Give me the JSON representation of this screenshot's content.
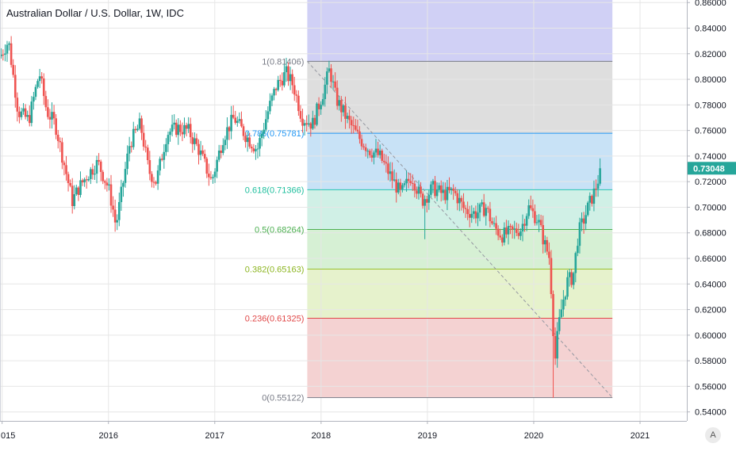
{
  "header": {
    "title": "Australian Dollar / U.S. Dollar, 1W, IDC"
  },
  "controls": {
    "auto_scale_label": "A"
  },
  "chart_data": {
    "type": "candlestick",
    "title": "Australian Dollar / U.S. Dollar, 1W, IDC",
    "ylim": [
      0.533,
      0.862
    ],
    "y_ticks": [
      "0.86000",
      "0.84000",
      "0.82000",
      "0.80000",
      "0.78000",
      "0.76000",
      "0.74000",
      "0.72000",
      "0.70000",
      "0.68000",
      "0.66000",
      "0.64000",
      "0.62000",
      "0.60000",
      "0.58000",
      "0.56000",
      "0.54000"
    ],
    "x_ticks": [
      {
        "label": "015",
        "t": 2015.0
      },
      {
        "label": "2016",
        "t": 2016.0
      },
      {
        "label": "2017",
        "t": 2017.0
      },
      {
        "label": "2018",
        "t": 2018.0
      },
      {
        "label": "2019",
        "t": 2019.0
      },
      {
        "label": "2020",
        "t": 2020.0
      },
      {
        "label": "2021",
        "t": 2021.0
      }
    ],
    "last_price": {
      "label": "0.73048",
      "value": 0.73048
    },
    "colors": {
      "up": "#26a69a",
      "down": "#ef5350",
      "grid": "#e6e6e6",
      "axis": "#b2b5be",
      "price_badge": "#26a69a"
    },
    "fibonacci": {
      "start_t": 2017.87,
      "end_t": 2020.74,
      "high": 0.81406,
      "low": 0.55122,
      "top_value": 0.862,
      "levels": [
        {
          "label": "1(0.81406)",
          "value": 0.81406,
          "line": "#787b86",
          "fill": "#dedede",
          "label_color": "#787b86"
        },
        {
          "label": "0.786(0.75781)",
          "value": 0.75781,
          "line": "#2196f3",
          "fill": "#c8e2f6",
          "label_color": "#2196f3"
        },
        {
          "label": "0.618(0.71366)",
          "value": 0.71366,
          "line": "#26c6b2",
          "fill": "#d0f0e6",
          "label_color": "#1fbf9e"
        },
        {
          "label": "0.5(0.68264)",
          "value": 0.68264,
          "line": "#4caf50",
          "fill": "#d6f0d4",
          "label_color": "#4caf50"
        },
        {
          "label": "0.382(0.65163)",
          "value": 0.65163,
          "line": "#9ac22f",
          "fill": "#e6f2cc",
          "label_color": "#8cb520"
        },
        {
          "label": "0.236(0.61325)",
          "value": 0.61325,
          "line": "#e04848",
          "fill": "#f4d2d2",
          "label_color": "#e04848"
        },
        {
          "label": "0(0.55122)",
          "value": 0.55122,
          "line": "#787b86",
          "fill": null,
          "label_color": "#787b86"
        }
      ],
      "top_fill": "#d0d0f5",
      "trend_line": {
        "from": [
          2017.87,
          0.81406
        ],
        "to": [
          2020.74,
          0.55122
        ],
        "color": "#9598a1"
      }
    },
    "keypoints": [
      [
        2014.98,
        0.818
      ],
      [
        2015.06,
        0.83
      ],
      [
        2015.15,
        0.775
      ],
      [
        2015.25,
        0.768
      ],
      [
        2015.35,
        0.805
      ],
      [
        2015.42,
        0.775
      ],
      [
        2015.5,
        0.765
      ],
      [
        2015.58,
        0.735
      ],
      [
        2015.66,
        0.705
      ],
      [
        2015.72,
        0.715
      ],
      [
        2015.8,
        0.725
      ],
      [
        2015.9,
        0.735
      ],
      [
        2016.0,
        0.715
      ],
      [
        2016.04,
        0.7
      ],
      [
        2016.07,
        0.685
      ],
      [
        2016.12,
        0.71
      ],
      [
        2016.2,
        0.75
      ],
      [
        2016.3,
        0.765
      ],
      [
        2016.38,
        0.728
      ],
      [
        2016.45,
        0.72
      ],
      [
        2016.55,
        0.758
      ],
      [
        2016.65,
        0.762
      ],
      [
        2016.75,
        0.76
      ],
      [
        2016.85,
        0.745
      ],
      [
        2016.97,
        0.72
      ],
      [
        2017.08,
        0.755
      ],
      [
        2017.18,
        0.77
      ],
      [
        2017.3,
        0.755
      ],
      [
        2017.4,
        0.745
      ],
      [
        2017.5,
        0.775
      ],
      [
        2017.58,
        0.795
      ],
      [
        2017.67,
        0.805
      ],
      [
        2017.74,
        0.795
      ],
      [
        2017.82,
        0.77
      ],
      [
        2017.92,
        0.765
      ],
      [
        2018.02,
        0.79
      ],
      [
        2018.08,
        0.808
      ],
      [
        2018.14,
        0.785
      ],
      [
        2018.25,
        0.768
      ],
      [
        2018.35,
        0.755
      ],
      [
        2018.45,
        0.745
      ],
      [
        2018.55,
        0.74
      ],
      [
        2018.65,
        0.725
      ],
      [
        2018.75,
        0.71
      ],
      [
        2018.85,
        0.725
      ],
      [
        2018.95,
        0.705
      ],
      [
        2019.05,
        0.715
      ],
      [
        2019.15,
        0.71
      ],
      [
        2019.25,
        0.712
      ],
      [
        2019.35,
        0.698
      ],
      [
        2019.45,
        0.695
      ],
      [
        2019.55,
        0.7
      ],
      [
        2019.62,
        0.685
      ],
      [
        2019.7,
        0.678
      ],
      [
        2019.78,
        0.68
      ],
      [
        2019.88,
        0.683
      ],
      [
        2019.95,
        0.7
      ],
      [
        2020.04,
        0.69
      ],
      [
        2020.1,
        0.672
      ],
      [
        2020.15,
        0.66
      ],
      [
        2020.18,
        0.61
      ],
      [
        2020.2,
        0.58
      ],
      [
        2020.23,
        0.605
      ],
      [
        2020.27,
        0.625
      ],
      [
        2020.32,
        0.643
      ],
      [
        2020.37,
        0.645
      ],
      [
        2020.42,
        0.68
      ],
      [
        2020.47,
        0.69
      ],
      [
        2020.52,
        0.702
      ],
      [
        2020.57,
        0.712
      ],
      [
        2020.63,
        0.728
      ]
    ],
    "spikes": [
      {
        "t": 2018.98,
        "low": 0.675
      },
      {
        "t": 2020.19,
        "low": 0.551
      }
    ]
  }
}
